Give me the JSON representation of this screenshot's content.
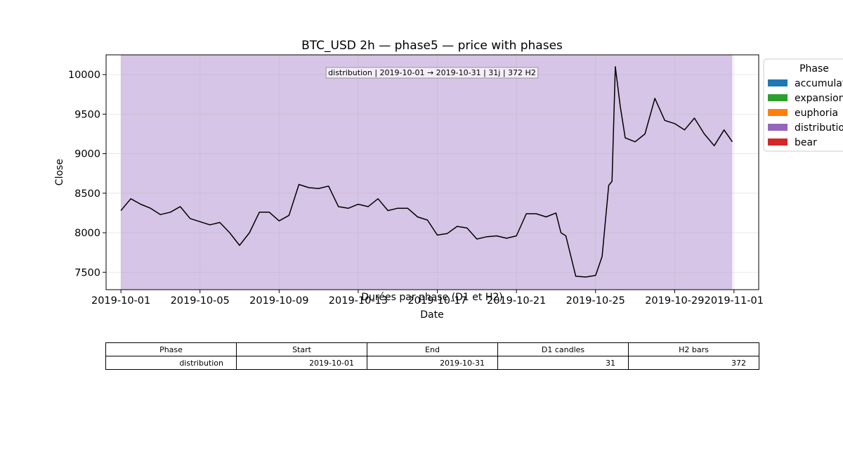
{
  "chart_data": {
    "type": "line",
    "title": "BTC_USD 2h — phase5 — price with phases",
    "xlabel": "Date",
    "ylabel": "Close",
    "x_start": "2019-10-01",
    "x_end": "2019-11-01",
    "xlim": [
      "2019-09-30T06:00",
      "2019-11-02T06:00"
    ],
    "ylim": [
      7280,
      10250
    ],
    "x_ticks": [
      "2019-10-01",
      "2019-10-05",
      "2019-10-09",
      "2019-10-13",
      "2019-10-17",
      "2019-10-21",
      "2019-10-25",
      "2019-10-29",
      "2019-11-01"
    ],
    "y_ticks": [
      7500,
      8000,
      8500,
      9000,
      9500,
      10000
    ],
    "y_tick_labels": [
      "7500",
      "8000",
      "8500",
      "9000",
      "9500",
      "10000"
    ],
    "grid": true,
    "line_color": "#000000",
    "series": [
      {
        "x": [
          "2019-10-01T00:00",
          "2019-10-01T12:00",
          "2019-10-02T00:00",
          "2019-10-02T12:00",
          "2019-10-03T00:00",
          "2019-10-03T12:00",
          "2019-10-04T00:00",
          "2019-10-04T12:00",
          "2019-10-05T00:00",
          "2019-10-05T12:00",
          "2019-10-06T00:00",
          "2019-10-06T12:00",
          "2019-10-07T00:00",
          "2019-10-07T12:00",
          "2019-10-08T00:00",
          "2019-10-08T12:00",
          "2019-10-09T00:00",
          "2019-10-09T12:00",
          "2019-10-10T00:00",
          "2019-10-10T12:00",
          "2019-10-11T00:00",
          "2019-10-11T12:00",
          "2019-10-12T00:00",
          "2019-10-12T12:00",
          "2019-10-13T00:00",
          "2019-10-13T12:00",
          "2019-10-14T00:00",
          "2019-10-14T12:00",
          "2019-10-15T00:00",
          "2019-10-15T12:00",
          "2019-10-16T00:00",
          "2019-10-16T12:00",
          "2019-10-17T00:00",
          "2019-10-17T12:00",
          "2019-10-18T00:00",
          "2019-10-18T12:00",
          "2019-10-19T00:00",
          "2019-10-19T12:00",
          "2019-10-20T00:00",
          "2019-10-20T12:00",
          "2019-10-21T00:00",
          "2019-10-21T12:00",
          "2019-10-22T00:00",
          "2019-10-22T12:00",
          "2019-10-23T00:00",
          "2019-10-23T06:00",
          "2019-10-23T12:00",
          "2019-10-24T00:00",
          "2019-10-24T12:00",
          "2019-10-25T00:00",
          "2019-10-25T08:00",
          "2019-10-25T16:00",
          "2019-10-25T20:00",
          "2019-10-26T00:00",
          "2019-10-26T06:00",
          "2019-10-26T12:00",
          "2019-10-27T00:00",
          "2019-10-27T12:00",
          "2019-10-28T00:00",
          "2019-10-28T12:00",
          "2019-10-29T00:00",
          "2019-10-29T12:00",
          "2019-10-30T00:00",
          "2019-10-30T12:00",
          "2019-10-31T00:00",
          "2019-10-31T12:00",
          "2019-10-31T22:00"
        ],
        "values": [
          8280,
          8430,
          8360,
          8310,
          8230,
          8260,
          8330,
          8180,
          8140,
          8100,
          8130,
          8000,
          7840,
          8000,
          8260,
          8260,
          8150,
          8220,
          8610,
          8570,
          8560,
          8590,
          8330,
          8310,
          8360,
          8330,
          8430,
          8280,
          8310,
          8310,
          8200,
          8160,
          7970,
          7990,
          8080,
          8060,
          7920,
          7950,
          7960,
          7930,
          7960,
          8240,
          8240,
          8200,
          8250,
          8000,
          7960,
          7450,
          7440,
          7460,
          7700,
          8600,
          8650,
          10100,
          9600,
          9200,
          9150,
          9250,
          9700,
          9420,
          9380,
          9300,
          9450,
          9250,
          9100,
          9300,
          9150
        ]
      }
    ],
    "phase_spans": [
      {
        "phase": "distribution",
        "start": "2019-10-01",
        "end": "2019-10-31T22:00",
        "color": "#9467bd"
      }
    ],
    "annotation": "distribution | 2019-10-01 → 2019-10-31 | 31j | 372 H2",
    "legend": {
      "title": "Phase",
      "placement": "outside-top-right",
      "items": [
        {
          "label": "accumulation",
          "color": "#1f77b4"
        },
        {
          "label": "expansion",
          "color": "#2ca02c"
        },
        {
          "label": "euphoria",
          "color": "#ff7f0e"
        },
        {
          "label": "distribution",
          "color": "#9467bd"
        },
        {
          "label": "bear",
          "color": "#d62728"
        }
      ]
    }
  },
  "table": {
    "title": "Durées par phase (D1 et H2)",
    "headers": [
      "Phase",
      "Start",
      "End",
      "D1 candles",
      "H2 bars"
    ],
    "rows": [
      [
        "distribution",
        "2019-10-01",
        "2019-10-31",
        "31",
        "372"
      ]
    ]
  }
}
